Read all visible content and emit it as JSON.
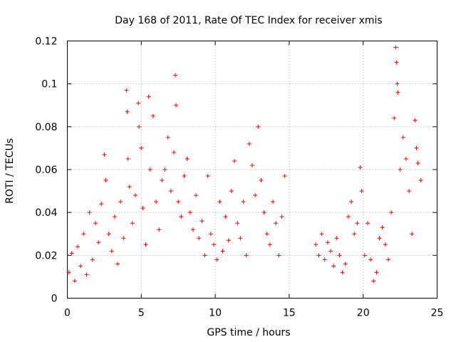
{
  "chart_data": {
    "type": "scatter",
    "title": "Day 168 of 2011, Rate Of TEC Index for receiver xmis",
    "xlabel": "GPS time / hours",
    "ylabel": "ROTI / TECUs",
    "xlim": [
      0,
      25
    ],
    "ylim": [
      0,
      0.12
    ],
    "xticks": [
      0,
      5,
      10,
      15,
      20,
      25
    ],
    "xtick_labels": [
      "0",
      "5",
      "10",
      "15",
      "20",
      "25"
    ],
    "yticks": [
      0,
      0.02,
      0.04,
      0.06,
      0.08,
      0.1,
      0.12
    ],
    "ytick_labels": [
      "0",
      "0.02",
      "0.04",
      "0.06",
      "0.08",
      "0.1",
      "0.12"
    ],
    "grid": true,
    "marker": "+",
    "series": [
      {
        "color": "#ff0000",
        "points": [
          [
            0.1,
            0.012
          ],
          [
            0.3,
            0.021
          ],
          [
            0.5,
            0.008
          ],
          [
            0.7,
            0.024
          ],
          [
            0.9,
            0.015
          ],
          [
            1.1,
            0.03
          ],
          [
            1.3,
            0.011
          ],
          [
            1.5,
            0.04
          ],
          [
            1.7,
            0.018
          ],
          [
            1.9,
            0.035
          ],
          [
            2.1,
            0.026
          ],
          [
            2.3,
            0.044
          ],
          [
            2.5,
            0.067
          ],
          [
            2.6,
            0.055
          ],
          [
            2.8,
            0.03
          ],
          [
            3.0,
            0.022
          ],
          [
            3.2,
            0.038
          ],
          [
            3.4,
            0.016
          ],
          [
            3.6,
            0.045
          ],
          [
            3.8,
            0.028
          ],
          [
            4.0,
            0.097
          ],
          [
            4.05,
            0.087
          ],
          [
            4.1,
            0.065
          ],
          [
            4.2,
            0.052
          ],
          [
            4.4,
            0.035
          ],
          [
            4.6,
            0.048
          ],
          [
            4.8,
            0.091
          ],
          [
            4.85,
            0.08
          ],
          [
            5.0,
            0.07
          ],
          [
            5.1,
            0.042
          ],
          [
            5.3,
            0.025
          ],
          [
            5.5,
            0.094
          ],
          [
            5.6,
            0.06
          ],
          [
            5.8,
            0.085
          ],
          [
            6.0,
            0.045
          ],
          [
            6.2,
            0.032
          ],
          [
            6.4,
            0.055
          ],
          [
            6.6,
            0.06
          ],
          [
            6.8,
            0.075
          ],
          [
            7.0,
            0.05
          ],
          [
            7.2,
            0.068
          ],
          [
            7.3,
            0.104
          ],
          [
            7.35,
            0.09
          ],
          [
            7.5,
            0.045
          ],
          [
            7.7,
            0.038
          ],
          [
            7.9,
            0.057
          ],
          [
            8.1,
            0.065
          ],
          [
            8.3,
            0.04
          ],
          [
            8.5,
            0.032
          ],
          [
            8.7,
            0.048
          ],
          [
            8.9,
            0.028
          ],
          [
            9.1,
            0.036
          ],
          [
            9.3,
            0.02
          ],
          [
            9.5,
            0.057
          ],
          [
            9.7,
            0.03
          ],
          [
            9.9,
            0.025
          ],
          [
            10.1,
            0.018
          ],
          [
            10.3,
            0.045
          ],
          [
            10.5,
            0.022
          ],
          [
            10.7,
            0.038
          ],
          [
            10.9,
            0.027
          ],
          [
            11.1,
            0.05
          ],
          [
            11.3,
            0.064
          ],
          [
            11.5,
            0.035
          ],
          [
            11.7,
            0.028
          ],
          [
            11.9,
            0.045
          ],
          [
            12.1,
            0.02
          ],
          [
            12.3,
            0.072
          ],
          [
            12.5,
            0.062
          ],
          [
            12.7,
            0.048
          ],
          [
            12.9,
            0.08
          ],
          [
            13.1,
            0.055
          ],
          [
            13.3,
            0.04
          ],
          [
            13.5,
            0.03
          ],
          [
            13.7,
            0.025
          ],
          [
            13.9,
            0.045
          ],
          [
            14.1,
            0.035
          ],
          [
            14.3,
            0.02
          ],
          [
            14.5,
            0.038
          ],
          [
            14.7,
            0.057
          ],
          [
            16.8,
            0.025
          ],
          [
            17.0,
            0.02
          ],
          [
            17.2,
            0.03
          ],
          [
            17.4,
            0.018
          ],
          [
            17.6,
            0.026
          ],
          [
            17.8,
            0.022
          ],
          [
            18.0,
            0.015
          ],
          [
            18.2,
            0.028
          ],
          [
            18.4,
            0.02
          ],
          [
            18.6,
            0.012
          ],
          [
            18.8,
            0.016
          ],
          [
            19.0,
            0.038
          ],
          [
            19.2,
            0.045
          ],
          [
            19.4,
            0.03
          ],
          [
            19.6,
            0.035
          ],
          [
            19.8,
            0.061
          ],
          [
            19.9,
            0.05
          ],
          [
            20.1,
            0.02
          ],
          [
            20.3,
            0.035
          ],
          [
            20.5,
            0.018
          ],
          [
            20.7,
            0.008
          ],
          [
            20.9,
            0.012
          ],
          [
            21.1,
            0.028
          ],
          [
            21.3,
            0.033
          ],
          [
            21.5,
            0.025
          ],
          [
            21.7,
            0.018
          ],
          [
            21.9,
            0.04
          ],
          [
            22.1,
            0.084
          ],
          [
            22.2,
            0.117
          ],
          [
            22.25,
            0.11
          ],
          [
            22.3,
            0.1
          ],
          [
            22.35,
            0.096
          ],
          [
            22.5,
            0.06
          ],
          [
            22.7,
            0.075
          ],
          [
            22.9,
            0.065
          ],
          [
            23.1,
            0.05
          ],
          [
            23.3,
            0.03
          ],
          [
            23.5,
            0.083
          ],
          [
            23.6,
            0.07
          ],
          [
            23.7,
            0.063
          ],
          [
            23.9,
            0.055
          ]
        ]
      }
    ]
  }
}
